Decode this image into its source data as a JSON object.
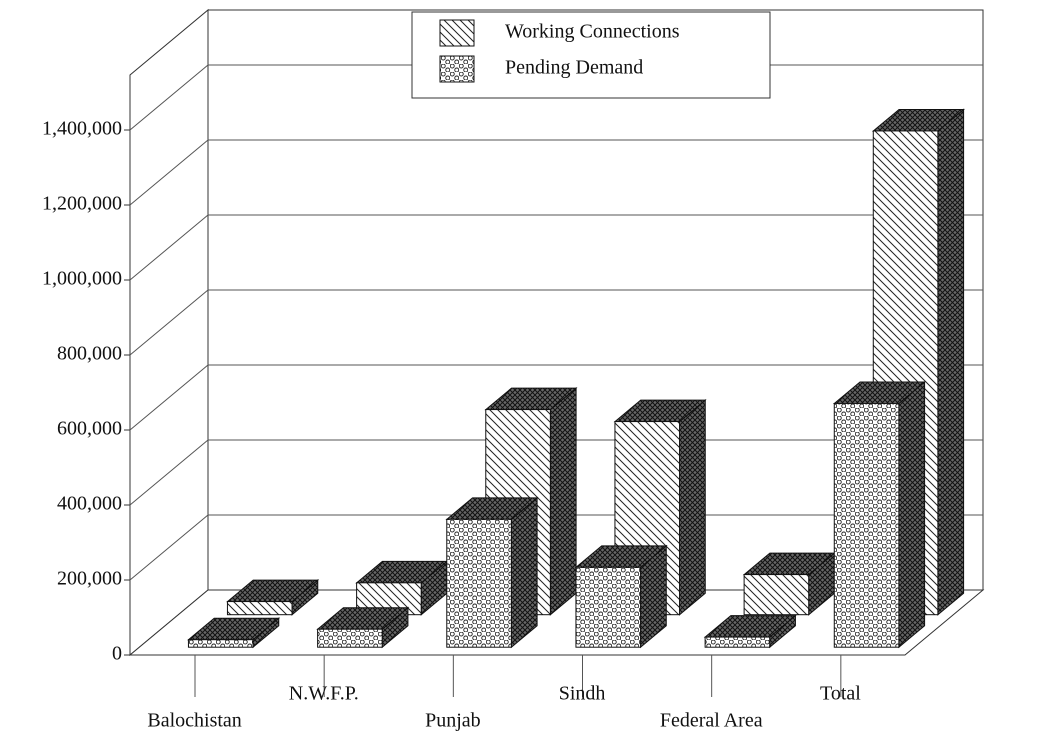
{
  "chart_data": {
    "type": "bar3d",
    "categories": [
      "Balochistan",
      "N.W.F.P.",
      "Punjab",
      "Sindh",
      "Federal Area",
      "Total"
    ],
    "series": [
      {
        "name": "Working Connections",
        "color": "#000000",
        "pattern": "diagonal",
        "values": [
          35000,
          85000,
          547000,
          515000,
          107000,
          1290000
        ]
      },
      {
        "name": "Pending Demand",
        "color": "#000000",
        "pattern": "circles",
        "values": [
          20000,
          48000,
          341000,
          213000,
          27000,
          650000
        ]
      }
    ],
    "ylim": [
      0,
      1400000
    ],
    "yticks": [
      0,
      {
        "value": 200000,
        "label": "200,000"
      },
      {
        "value": 400000,
        "label": "400,000"
      },
      {
        "value": 600000,
        "label": "600,000"
      },
      {
        "value": 800000,
        "label": "800,000"
      },
      {
        "value": 1000000,
        "label": "1,000,000"
      },
      {
        "value": 1200000,
        "label": "1,200,000"
      },
      {
        "value": 1400000,
        "label": "1,400,000"
      }
    ],
    "grid": true,
    "legend": "top"
  }
}
